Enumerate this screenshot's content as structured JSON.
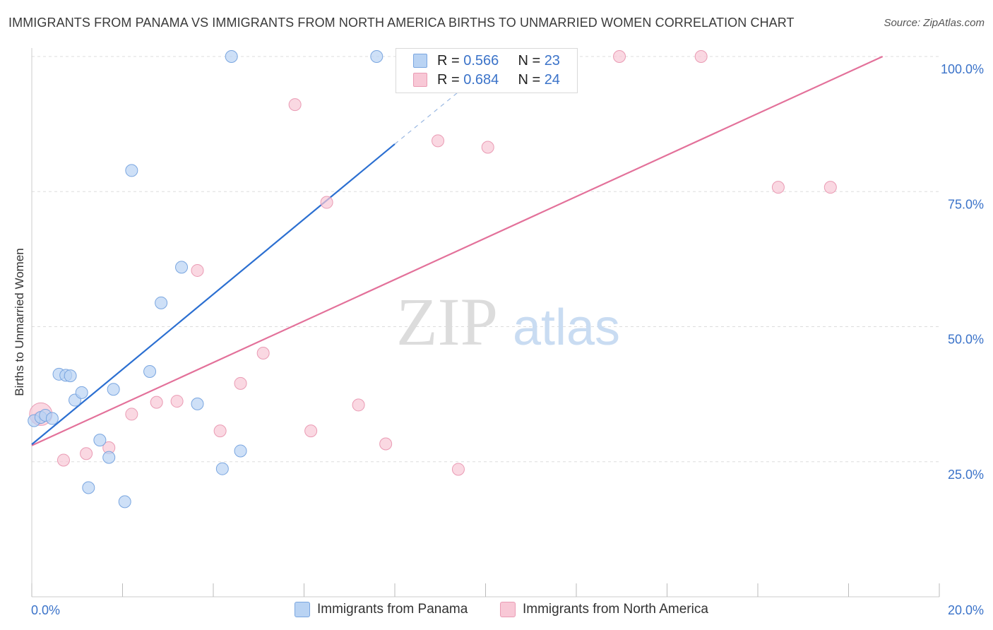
{
  "title": "IMMIGRANTS FROM PANAMA VS IMMIGRANTS FROM NORTH AMERICA BIRTHS TO UNMARRIED WOMEN CORRELATION CHART",
  "source": "Source: ZipAtlas.com",
  "watermark": {
    "zip": "ZIP",
    "atlas": "atlas"
  },
  "legend": {
    "rows": [
      {
        "r_label": "R = ",
        "r_value": "0.566",
        "n_label": "N = ",
        "n_value": "23"
      },
      {
        "r_label": "R = ",
        "r_value": "0.684",
        "n_label": "N = ",
        "n_value": "24"
      }
    ]
  },
  "colors": {
    "panama_fill": "#b9d3f3",
    "panama_stroke": "#7aa6e0",
    "panama_line": "#2b6fd1",
    "na_fill": "#f8c8d6",
    "na_stroke": "#ea9bb4",
    "na_line": "#e3719a",
    "tick_label": "#3b73c9",
    "grid": "#dddddd"
  },
  "chart_data": {
    "type": "scatter",
    "title": "IMMIGRANTS FROM PANAMA VS IMMIGRANTS FROM NORTH AMERICA BIRTHS TO UNMARRIED WOMEN CORRELATION CHART",
    "xlabel": "",
    "ylabel": "Births to Unmarried Women",
    "xlim": [
      0,
      20
    ],
    "ylim": [
      0,
      100
    ],
    "x_tick_labels": [
      {
        "value": 0,
        "label": "0.0%"
      },
      {
        "value": 20,
        "label": "20.0%"
      }
    ],
    "y_tick_labels": [
      {
        "value": 25,
        "label": "25.0%"
      },
      {
        "value": 50,
        "label": "50.0%"
      },
      {
        "value": 75,
        "label": "75.0%"
      },
      {
        "value": 100,
        "label": "100.0%"
      }
    ],
    "x_minor_ticks": [
      0,
      2,
      4,
      6,
      8,
      10,
      12,
      14,
      16,
      18,
      20
    ],
    "series": [
      {
        "name": "Immigrants from Panama",
        "R": 0.566,
        "N": 23,
        "points": [
          [
            0.05,
            32.6
          ],
          [
            0.2,
            33.2
          ],
          [
            0.3,
            33.6
          ],
          [
            0.45,
            33.0
          ],
          [
            0.6,
            41.2
          ],
          [
            0.75,
            41.0
          ],
          [
            0.85,
            40.9
          ],
          [
            0.95,
            36.4
          ],
          [
            1.1,
            37.8
          ],
          [
            1.25,
            20.2
          ],
          [
            1.5,
            29.0
          ],
          [
            1.7,
            25.8
          ],
          [
            1.8,
            38.4
          ],
          [
            2.05,
            17.6
          ],
          [
            2.2,
            78.9
          ],
          [
            2.6,
            41.7
          ],
          [
            2.85,
            54.4
          ],
          [
            3.3,
            61.0
          ],
          [
            3.65,
            35.7
          ],
          [
            4.2,
            23.7
          ],
          [
            4.6,
            27.0
          ],
          [
            4.4,
            100.0
          ],
          [
            7.6,
            100.0
          ]
        ],
        "trend_solid": {
          "x": [
            0.0,
            8.0
          ],
          "y": [
            28.2,
            83.8
          ]
        },
        "trend_dashed": {
          "x": [
            8.0,
            10.5
          ],
          "y": [
            83.8,
            101.0
          ]
        }
      },
      {
        "name": "Immigrants from North America",
        "R": 0.684,
        "N": 24,
        "points": [
          [
            0.15,
            33.0
          ],
          [
            0.7,
            25.3
          ],
          [
            1.2,
            26.5
          ],
          [
            1.7,
            27.6
          ],
          [
            2.2,
            33.8
          ],
          [
            2.75,
            36.0
          ],
          [
            3.2,
            36.2
          ],
          [
            3.65,
            60.4
          ],
          [
            4.15,
            30.7
          ],
          [
            4.6,
            39.5
          ],
          [
            5.1,
            45.1
          ],
          [
            5.8,
            91.1
          ],
          [
            6.15,
            30.7
          ],
          [
            6.5,
            73.0
          ],
          [
            7.2,
            35.5
          ],
          [
            7.8,
            28.3
          ],
          [
            8.95,
            84.4
          ],
          [
            9.4,
            23.6
          ],
          [
            10.05,
            83.2
          ],
          [
            12.95,
            100.0
          ],
          [
            14.75,
            100.0
          ],
          [
            16.45,
            75.8
          ],
          [
            17.6,
            75.8
          ],
          [
            0.2,
            33.8
          ]
        ],
        "trend_solid": {
          "x": [
            0.0,
            18.75
          ],
          "y": [
            28.0,
            100.0
          ]
        }
      }
    ],
    "legend_position": "top-center"
  },
  "bottom_legend": {
    "items": [
      "Immigrants from Panama",
      "Immigrants from North America"
    ]
  }
}
